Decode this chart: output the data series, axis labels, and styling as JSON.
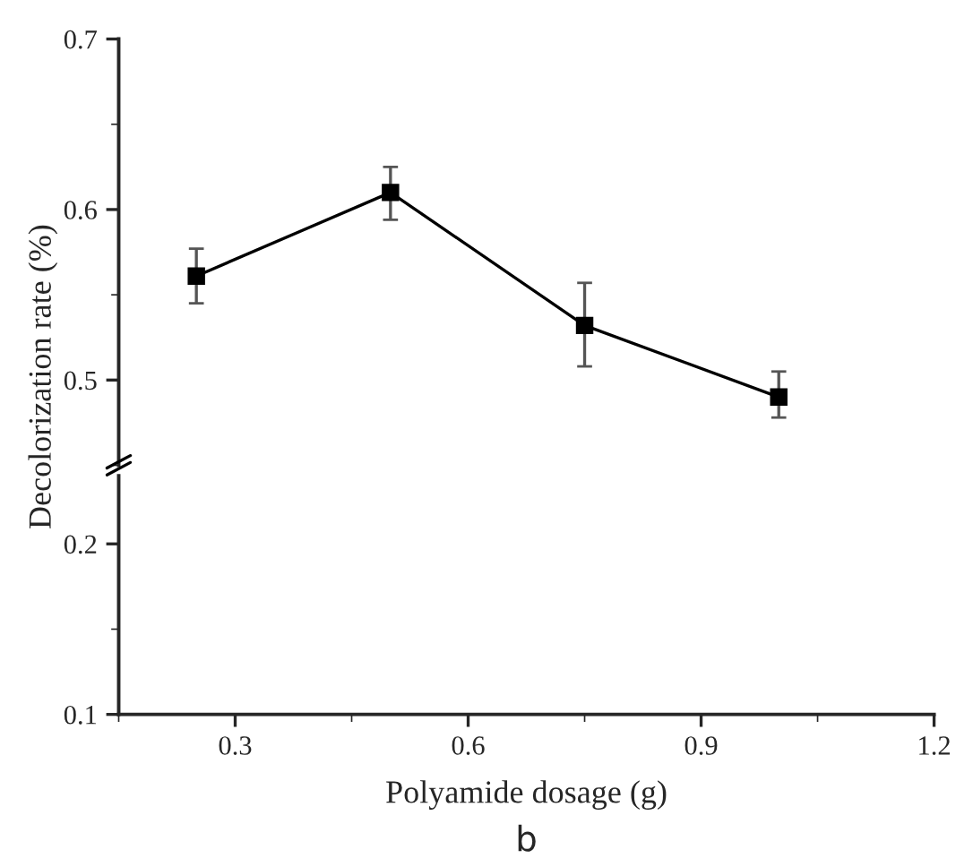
{
  "chart_data": [
    {
      "type": "line",
      "ylabel": "Decolorization rate (%)",
      "xlim": [
        0.15,
        1.2
      ],
      "ylim": [
        0.45,
        0.7
      ],
      "yticks": [
        0.5,
        0.6,
        0.7
      ],
      "tick_labels": "y",
      "marker": "square",
      "line_style": "solid",
      "series": [
        {
          "color": "#000000",
          "x": [
            0.25,
            0.5,
            0.75,
            1.0
          ],
          "values": [
            0.561,
            0.61,
            0.532,
            0.49
          ],
          "errors": [
            [
              0.545,
              0.577
            ],
            [
              0.594,
              0.625
            ],
            [
              0.508,
              0.557
            ],
            [
              0.478,
              0.505
            ]
          ]
        }
      ]
    },
    {
      "type": "line",
      "xlabel": "Polyamide dosage (g)",
      "xlim": [
        0.15,
        1.2
      ],
      "xticks": [
        0.3,
        0.6,
        0.9,
        1.2
      ],
      "ylim": [
        0.1,
        0.24
      ],
      "yticks": [
        0.1,
        0.2
      ],
      "annotations": [
        "b"
      ]
    }
  ]
}
